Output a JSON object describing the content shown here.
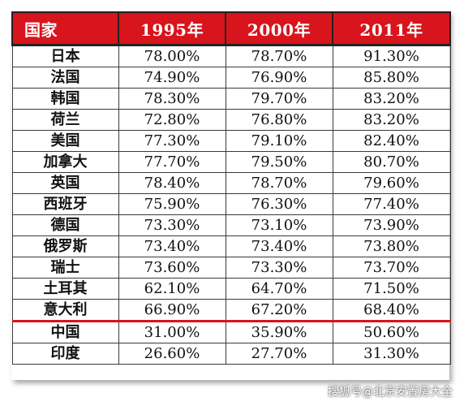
{
  "table": {
    "headers": [
      "国家",
      "1995年",
      "2000年",
      "2011年"
    ],
    "rows": [
      {
        "country": "日本",
        "y1995": "78.00%",
        "y2000": "78.70%",
        "y2011": "91.30%"
      },
      {
        "country": "法国",
        "y1995": "74.90%",
        "y2000": "76.90%",
        "y2011": "85.80%"
      },
      {
        "country": "韩国",
        "y1995": "78.30%",
        "y2000": "79.70%",
        "y2011": "83.20%"
      },
      {
        "country": "荷兰",
        "y1995": "72.80%",
        "y2000": "76.80%",
        "y2011": "83.20%"
      },
      {
        "country": "美国",
        "y1995": "77.30%",
        "y2000": "79.10%",
        "y2011": "82.40%"
      },
      {
        "country": "加拿大",
        "y1995": "77.70%",
        "y2000": "79.50%",
        "y2011": "80.70%"
      },
      {
        "country": "英国",
        "y1995": "78.40%",
        "y2000": "78.70%",
        "y2011": "79.60%"
      },
      {
        "country": "西班牙",
        "y1995": "75.90%",
        "y2000": "76.30%",
        "y2011": "77.40%"
      },
      {
        "country": "德国",
        "y1995": "73.30%",
        "y2000": "73.10%",
        "y2011": "73.90%"
      },
      {
        "country": "俄罗斯",
        "y1995": "73.40%",
        "y2000": "73.40%",
        "y2011": "73.80%"
      },
      {
        "country": "瑞士",
        "y1995": "73.60%",
        "y2000": "73.30%",
        "y2011": "73.70%"
      },
      {
        "country": "土耳其",
        "y1995": "62.10%",
        "y2000": "64.70%",
        "y2011": "71.50%"
      },
      {
        "country": "意大利",
        "y1995": "66.90%",
        "y2000": "67.20%",
        "y2011": "68.40%"
      },
      {
        "country": "中国",
        "y1995": "31.00%",
        "y2000": "35.90%",
        "y2011": "50.60%"
      },
      {
        "country": "印度",
        "y1995": "26.60%",
        "y2000": "27.70%",
        "y2011": "31.30%"
      }
    ]
  },
  "watermark": "搜狐号@北京安置房大全",
  "colors": {
    "header_bg": "#d8141c",
    "header_text": "#ffffff",
    "separator": "#d8141c"
  }
}
